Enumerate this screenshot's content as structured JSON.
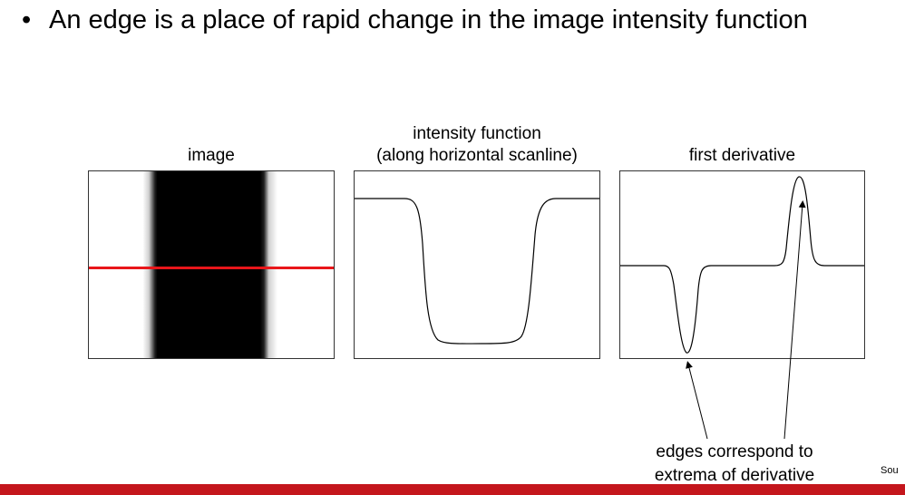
{
  "slide": {
    "bullet_marker": "•",
    "bullet_text": "An edge is a place of rapid change in the image intensity function"
  },
  "panels": {
    "image": {
      "title": "image"
    },
    "intensity": {
      "title_line1": "intensity function",
      "title_line2": "(along horizontal scanline)"
    },
    "derivative": {
      "title": "first derivative"
    }
  },
  "annotation": {
    "line1": "edges correspond to",
    "line2": "extrema of derivative"
  },
  "footer": {
    "source_text": "Sou"
  },
  "colors": {
    "scanline": "#e8161a",
    "bottom_bar": "#c4161c"
  }
}
